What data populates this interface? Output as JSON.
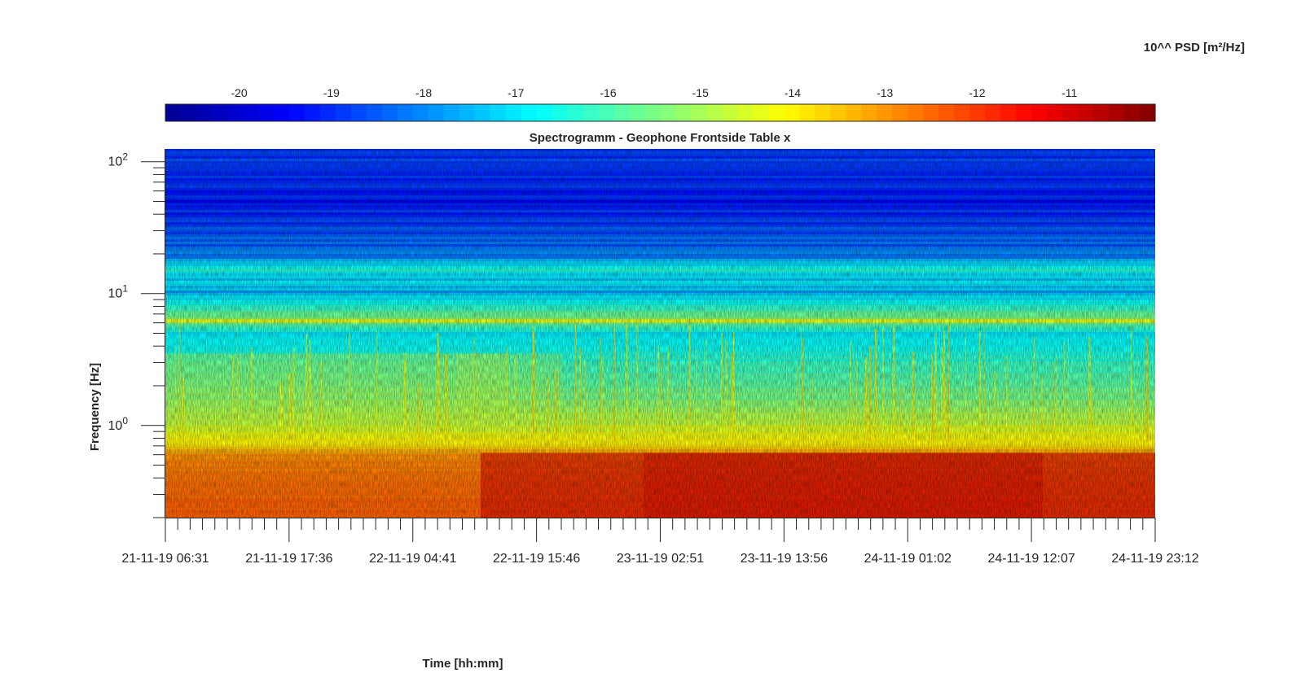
{
  "chart_data": {
    "type": "heatmap",
    "title": "Spectrogramm - Geophone Frontside Table x",
    "xlabel": "Time [hh:mm]",
    "ylabel": "Frequency [Hz]",
    "colorbar_label": "10^^ PSD [m²/Hz]",
    "colormap": "jet",
    "x_tick_labels": [
      "21-11-19 06:31",
      "21-11-19 17:36",
      "22-11-19 04:41",
      "22-11-19 15:46",
      "23-11-19 02:51",
      "23-11-19 13:56",
      "24-11-19 01:02",
      "24-11-19 12:07",
      "24-11-19 23:12"
    ],
    "xlim": [
      "21-11-19 06:31",
      "24-11-19 23:12"
    ],
    "y_scale": "log",
    "ylim": [
      0.2,
      125
    ],
    "y_tick_labels": [
      {
        "base": "10",
        "exp": "0",
        "value": 1
      },
      {
        "base": "10",
        "exp": "1",
        "value": 10
      },
      {
        "base": "10",
        "exp": "2",
        "value": 100
      }
    ],
    "colorbar_ticks": [
      -20,
      -19,
      -18,
      -17,
      -16,
      -15,
      -14,
      -13,
      -12,
      -11
    ],
    "clim": [
      -20.8,
      -10.07
    ],
    "color_stops": [
      "#00008f",
      "#0000ff",
      "#00ffff",
      "#ffff00",
      "#ff0000",
      "#800000"
    ],
    "profile_log_psd": [
      {
        "f": 125,
        "v": -18.6
      },
      {
        "f": 100,
        "v": -18.8
      },
      {
        "f": 50,
        "v": -19.1
      },
      {
        "f": 20,
        "v": -18.2
      },
      {
        "f": 15,
        "v": -16.8
      },
      {
        "f": 10,
        "v": -17.5
      },
      {
        "f": 6.2,
        "v": -15.2
      },
      {
        "f": 5,
        "v": -16.9
      },
      {
        "f": 3,
        "v": -16.3
      },
      {
        "f": 1.5,
        "v": -15.4
      },
      {
        "f": 1,
        "v": -14.6
      },
      {
        "f": 0.75,
        "v": -14.0
      },
      {
        "f": 0.6,
        "v": -13.0
      },
      {
        "f": 0.4,
        "v": -12.6
      },
      {
        "f": 0.2,
        "v": -12.4
      }
    ],
    "notable_lines_hz": [
      6.2,
      15,
      50
    ],
    "low_freq_trend": "stronger (darker red) between 22-11-19 15:46 and 24-11-19 12:07"
  }
}
